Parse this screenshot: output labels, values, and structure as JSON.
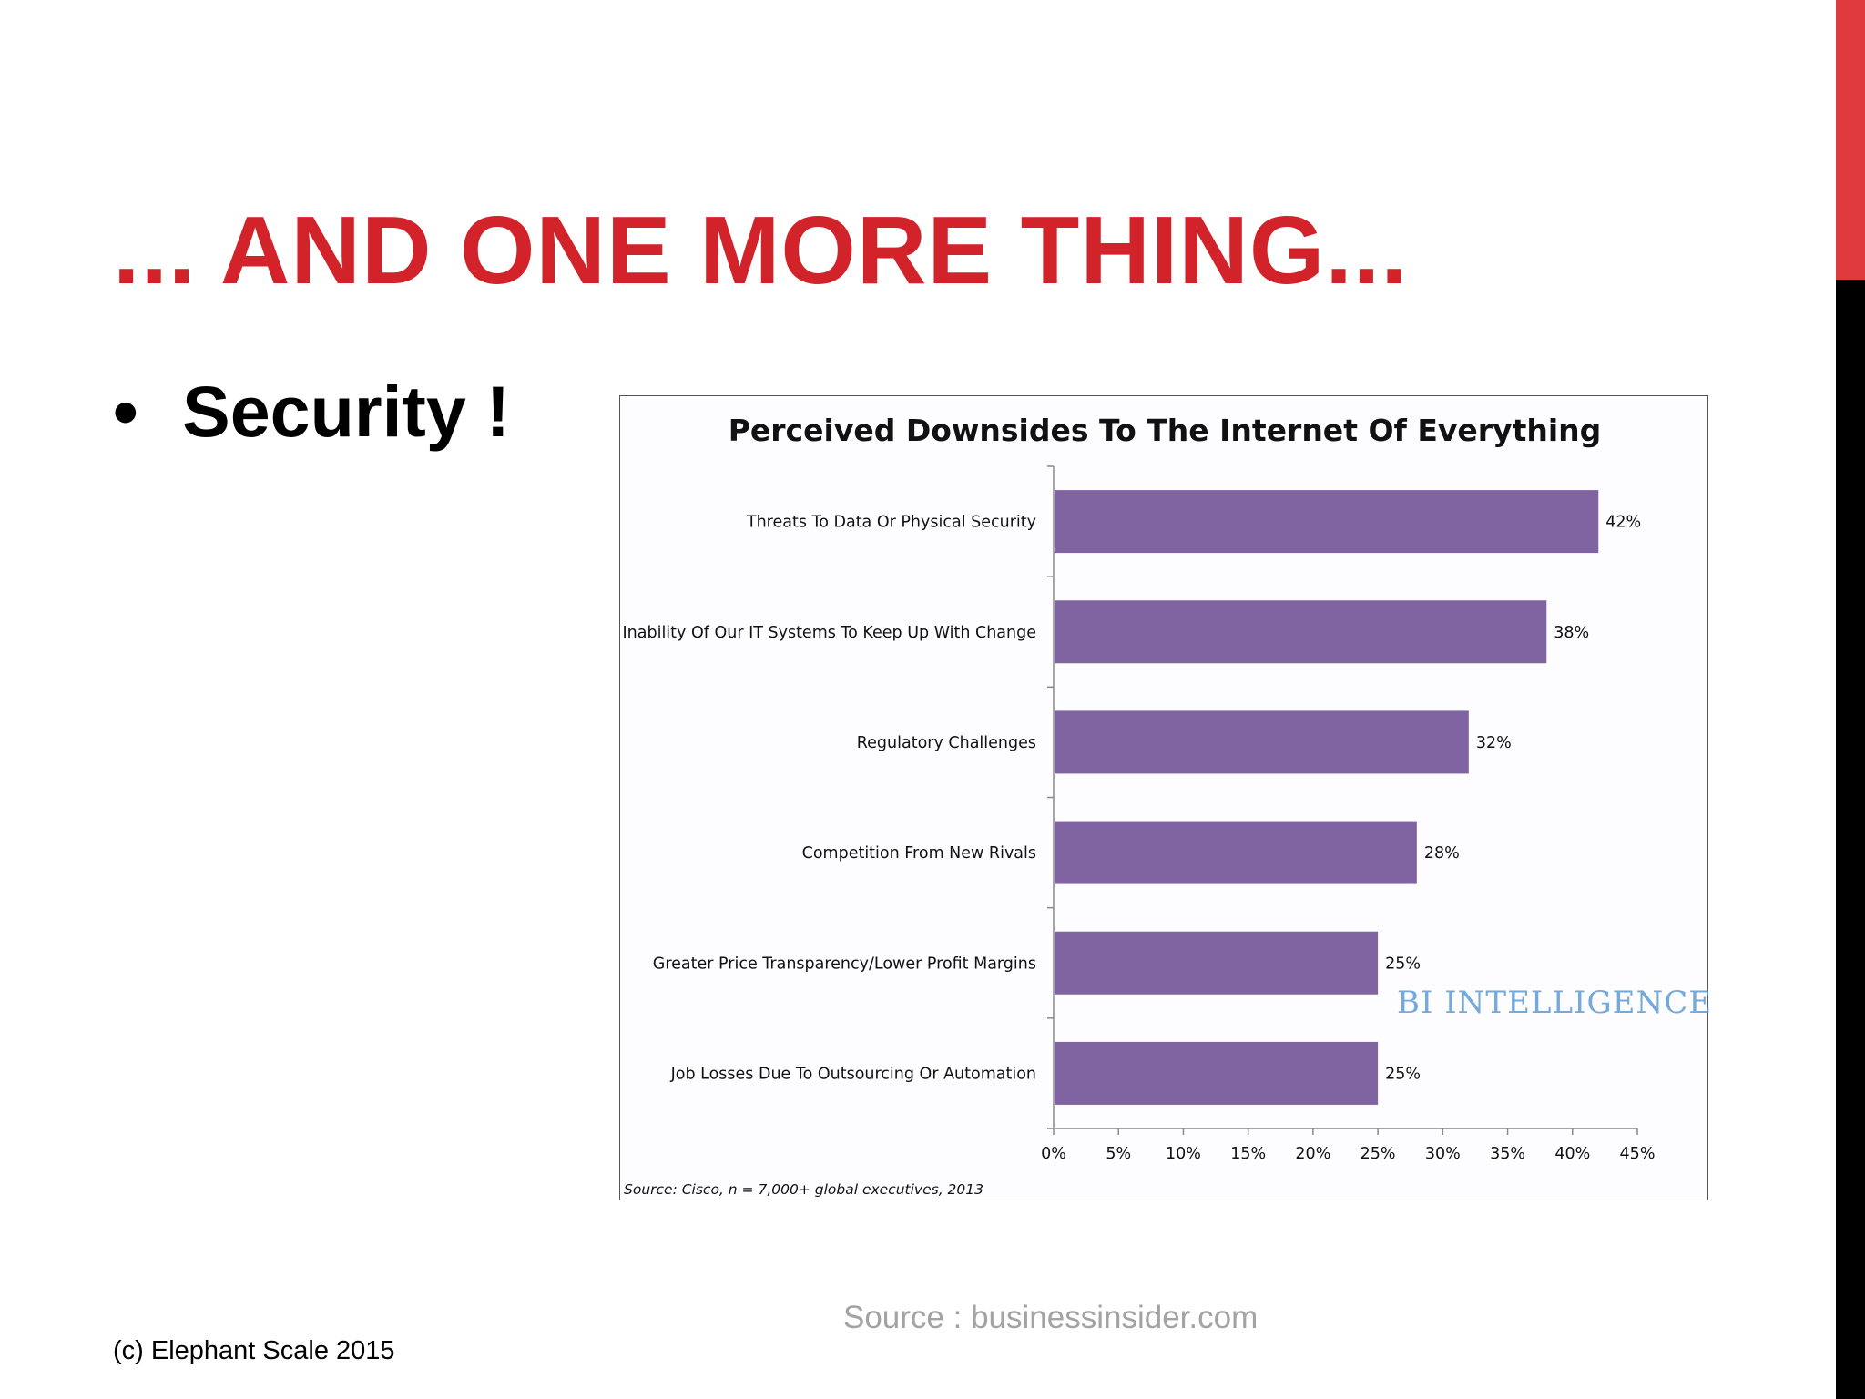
{
  "slide": {
    "title": "... AND ONE MORE THING...",
    "bullet_glyph": "•",
    "bullet_text": "Security !",
    "footer_copyright": "(c) Elephant Scale 2015",
    "footer_source": "Source : businessinsider.com",
    "colors": {
      "title": "#d2232a",
      "accent_red": "#e03a3e",
      "accent_black": "#000000"
    }
  },
  "chart_data": {
    "type": "bar",
    "orientation": "horizontal",
    "title": "Perceived Downsides To The Internet Of Everything",
    "categories": [
      "Threats To Data Or Physical Security",
      "Inability Of Our IT Systems To Keep Up With Change",
      "Regulatory Challenges",
      "Competition From New Rivals",
      "Greater Price Transparency/Lower Profit Margins",
      "Job Losses Due To Outsourcing Or Automation"
    ],
    "values": [
      42,
      38,
      32,
      28,
      25,
      25
    ],
    "value_labels": [
      "42%",
      "38%",
      "32%",
      "28%",
      "25%",
      "25%"
    ],
    "xlim": [
      0,
      45
    ],
    "xticks": [
      0,
      5,
      10,
      15,
      20,
      25,
      30,
      35,
      40,
      45
    ],
    "xtick_labels": [
      "0%",
      "5%",
      "10%",
      "15%",
      "20%",
      "25%",
      "30%",
      "35%",
      "40%",
      "45%"
    ],
    "bar_color": "#8064a2",
    "grid": false,
    "source_note": "Source: Cisco, n = 7,000+ global executives, 2013",
    "watermark": "BI INTELLIGENCE",
    "watermark_color": "#5b9bd5"
  }
}
